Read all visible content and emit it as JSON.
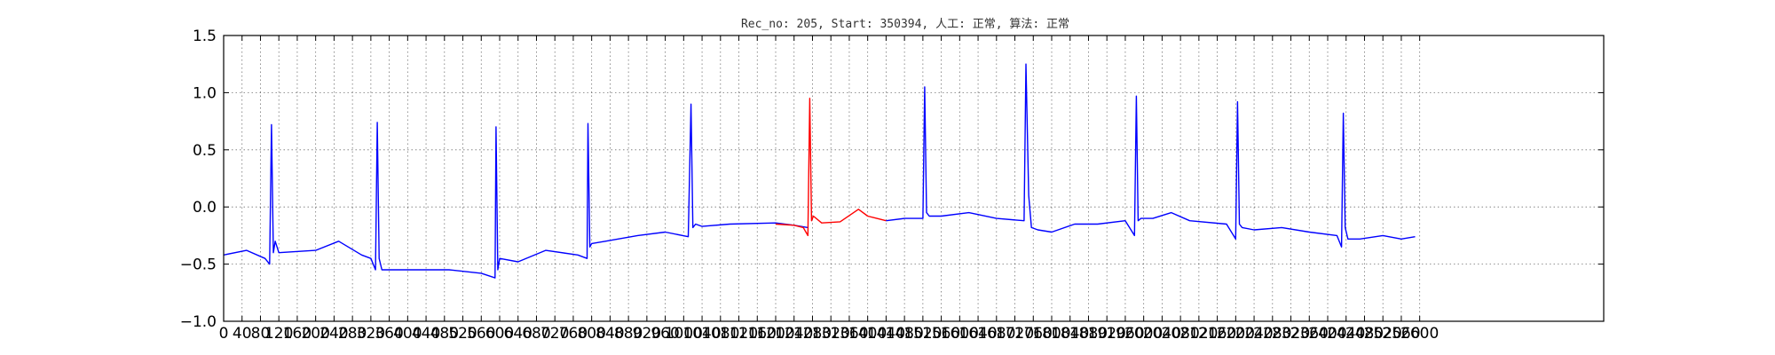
{
  "chart_data": {
    "type": "line",
    "title": "Rec_no: 205, Start: 350394, 人工: 正常, 算法: 正常",
    "xlabel": "",
    "ylabel": "",
    "xlim": [
      0,
      3000
    ],
    "ylim": [
      -1.0,
      1.5
    ],
    "grid": true,
    "yticks": [
      -1.0,
      -0.5,
      0.0,
      0.5,
      1.0,
      1.5
    ],
    "ytick_labels": [
      "−1.0",
      "−0.5",
      "0.0",
      "0.5",
      "1.0",
      "1.5"
    ],
    "xtick_step": 40,
    "xtick_labels": [
      "0",
      "40",
      "80",
      "120",
      "160",
      "200",
      "240",
      "280",
      "320",
      "360",
      "400",
      "440",
      "480",
      "520",
      "560",
      "600",
      "640",
      "680",
      "720",
      "760",
      "800",
      "840",
      "880",
      "920",
      "960",
      "1000",
      "1040",
      "1080",
      "1120",
      "1160",
      "1200",
      "1240",
      "1280",
      "1320",
      "1360",
      "1400",
      "1440",
      "1480",
      "1520",
      "1560",
      "1600",
      "1640",
      "1680",
      "1720",
      "1760",
      "1800",
      "1840",
      "1880",
      "1920",
      "1960",
      "2000",
      "2040",
      "2080",
      "2120",
      "2160",
      "2200",
      "2240",
      "2280",
      "2320",
      "2360",
      "2400",
      "2440",
      "2480",
      "2520",
      "2560",
      "2600"
    ],
    "series": [
      {
        "color": "#0000ff",
        "x": [
          0,
          50,
          90,
          100,
          104,
          108,
          112,
          120,
          200,
          250,
          300,
          320,
          330,
          334,
          338,
          344,
          360,
          420,
          490,
          560,
          590,
          592,
          596,
          600,
          640,
          700,
          770,
          790,
          792,
          796,
          800,
          830,
          900,
          960,
          1010,
          1016,
          1020,
          1026,
          1040,
          1100,
          1200,
          1240,
          1270
        ],
        "y": [
          -0.42,
          -0.38,
          -0.45,
          -0.5,
          0.72,
          -0.4,
          -0.3,
          -0.4,
          -0.38,
          -0.3,
          -0.42,
          -0.45,
          -0.55,
          0.74,
          -0.45,
          -0.55,
          -0.55,
          -0.55,
          -0.55,
          -0.58,
          -0.62,
          0.7,
          -0.55,
          -0.45,
          -0.48,
          -0.38,
          -0.42,
          -0.45,
          0.73,
          -0.35,
          -0.32,
          -0.3,
          -0.25,
          -0.22,
          -0.26,
          0.9,
          -0.18,
          -0.15,
          -0.17,
          -0.15,
          -0.14,
          -0.16,
          -0.18
        ]
      },
      {
        "color": "#ff0000",
        "x": [
          1200,
          1240,
          1260,
          1270,
          1274,
          1278,
          1282,
          1300,
          1340,
          1380,
          1400,
          1420,
          1440
        ],
        "y": [
          -0.15,
          -0.16,
          -0.18,
          -0.25,
          0.95,
          -0.12,
          -0.08,
          -0.14,
          -0.13,
          -0.02,
          -0.08,
          -0.1,
          -0.12
        ]
      },
      {
        "color": "#0000ff",
        "x": [
          1440,
          1480,
          1520,
          1524,
          1528,
          1534,
          1560,
          1620,
          1680,
          1740,
          1744,
          1750,
          1756,
          1770,
          1800,
          1850,
          1900,
          1960,
          1980,
          1984,
          1988,
          1994,
          2020,
          2060,
          2100,
          2180,
          2200,
          2204,
          2208,
          2214,
          2240,
          2300,
          2360,
          2420,
          2430,
          2434,
          2438,
          2444,
          2470,
          2520,
          2560,
          2590
        ],
        "y": [
          -0.12,
          -0.1,
          -0.1,
          1.05,
          -0.05,
          -0.08,
          -0.08,
          -0.05,
          -0.1,
          -0.12,
          1.25,
          0.1,
          -0.18,
          -0.2,
          -0.22,
          -0.15,
          -0.15,
          -0.12,
          -0.25,
          0.97,
          -0.12,
          -0.1,
          -0.1,
          -0.05,
          -0.12,
          -0.15,
          -0.28,
          0.92,
          -0.15,
          -0.18,
          -0.2,
          -0.18,
          -0.22,
          -0.25,
          -0.35,
          0.82,
          -0.18,
          -0.28,
          -0.28,
          -0.25,
          -0.28,
          -0.26
        ]
      }
    ]
  }
}
